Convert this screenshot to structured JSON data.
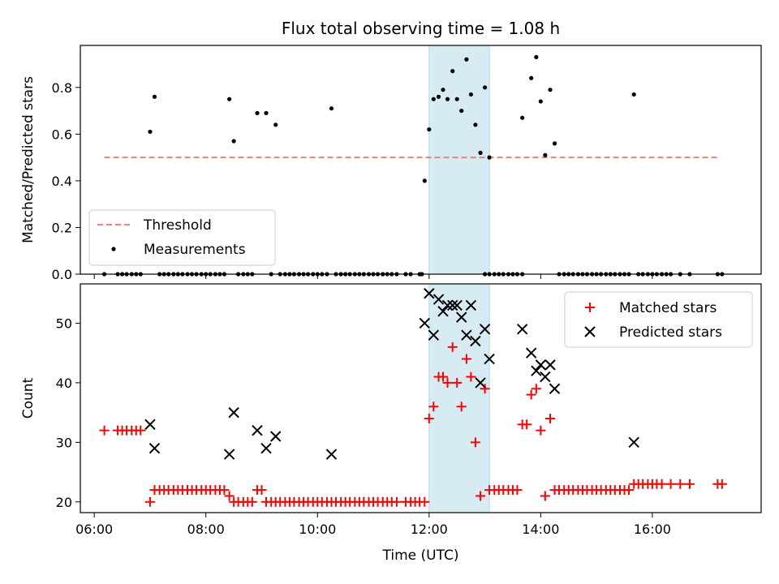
{
  "title": "Flux total observing time = 1.08 h",
  "colors": {
    "threshold": "#f08080",
    "measurements": "#000000",
    "matched": "#ff0000",
    "predicted": "#000000",
    "highlight": "#add8e6"
  },
  "x_axis": {
    "label": "Time (UTC)",
    "range_hours": [
      5.75,
      17.95
    ],
    "ticks": [
      {
        "hour": 6,
        "label": "06:00"
      },
      {
        "hour": 8,
        "label": "08:00"
      },
      {
        "hour": 10,
        "label": "10:00"
      },
      {
        "hour": 12,
        "label": "12:00"
      },
      {
        "hour": 14,
        "label": "14:00"
      },
      {
        "hour": 16,
        "label": "16:00"
      }
    ]
  },
  "highlight_window_hours": [
    12.0,
    13.08
  ],
  "chart_data": [
    {
      "type": "scatter",
      "panel": "top",
      "ylabel": "Matched/Predicted stars",
      "ylim": [
        0.0,
        0.98
      ],
      "yticks": [
        "0.0",
        "0.2",
        "0.4",
        "0.6",
        "0.8"
      ],
      "legend": {
        "placement": "lower-left",
        "threshold_label": "Threshold",
        "measurements_label": "Measurements"
      },
      "threshold": {
        "value": 0.5,
        "x_range": [
          6.18,
          17.2
        ]
      },
      "measurements": [
        [
          7.0,
          0.61
        ],
        [
          7.08,
          0.76
        ],
        [
          8.42,
          0.75
        ],
        [
          8.5,
          0.57
        ],
        [
          8.92,
          0.69
        ],
        [
          9.08,
          0.69
        ],
        [
          9.25,
          0.64
        ],
        [
          10.25,
          0.71
        ],
        [
          11.92,
          0.4
        ],
        [
          12.0,
          0.62
        ],
        [
          12.08,
          0.75
        ],
        [
          12.17,
          0.76
        ],
        [
          12.25,
          0.79
        ],
        [
          12.33,
          0.75
        ],
        [
          12.42,
          0.87
        ],
        [
          12.5,
          0.75
        ],
        [
          12.58,
          0.7
        ],
        [
          12.67,
          0.92
        ],
        [
          12.75,
          0.77
        ],
        [
          12.83,
          0.64
        ],
        [
          12.92,
          0.52
        ],
        [
          13.0,
          0.8
        ],
        [
          13.08,
          0.5
        ],
        [
          13.67,
          0.67
        ],
        [
          13.83,
          0.84
        ],
        [
          13.92,
          0.93
        ],
        [
          14.0,
          0.74
        ],
        [
          14.08,
          0.51
        ],
        [
          14.17,
          0.79
        ],
        [
          14.25,
          0.56
        ],
        [
          15.67,
          0.77
        ]
      ],
      "zero_measurements_x": [
        6.18,
        6.42,
        6.5,
        6.58,
        6.67,
        6.75,
        6.83,
        7.17,
        7.25,
        7.33,
        7.42,
        7.5,
        7.58,
        7.67,
        7.75,
        7.83,
        7.92,
        8.0,
        8.08,
        8.17,
        8.25,
        8.33,
        8.58,
        8.67,
        8.75,
        8.83,
        9.17,
        9.33,
        9.42,
        9.5,
        9.58,
        9.67,
        9.75,
        9.83,
        9.92,
        10.0,
        10.08,
        10.17,
        10.33,
        10.42,
        10.5,
        10.58,
        10.67,
        10.75,
        10.83,
        10.92,
        11.0,
        11.08,
        11.17,
        11.25,
        11.33,
        11.42,
        11.58,
        11.67,
        11.83,
        11.87,
        13.0,
        13.08,
        13.17,
        13.25,
        13.33,
        13.42,
        13.5,
        13.58,
        13.67,
        14.33,
        14.42,
        14.5,
        14.58,
        14.67,
        14.75,
        14.83,
        14.92,
        15.0,
        15.08,
        15.17,
        15.25,
        15.33,
        15.42,
        15.5,
        15.58,
        15.75,
        15.83,
        15.92,
        16.0,
        16.08,
        16.17,
        16.25,
        16.33,
        16.5,
        16.67,
        17.17,
        17.25
      ]
    },
    {
      "type": "scatter",
      "panel": "bottom",
      "ylabel": "Count",
      "ylim": [
        18.2,
        56.6
      ],
      "yticks": [
        "20",
        "30",
        "40",
        "50"
      ],
      "legend": {
        "placement": "upper-right",
        "matched_label": "Matched stars",
        "predicted_label": "Predicted stars"
      },
      "matched": [
        [
          6.18,
          32
        ],
        [
          6.42,
          32
        ],
        [
          6.5,
          32
        ],
        [
          6.58,
          32
        ],
        [
          6.67,
          32
        ],
        [
          6.75,
          32
        ],
        [
          6.83,
          32
        ],
        [
          7.0,
          20
        ],
        [
          7.08,
          22
        ],
        [
          7.17,
          22
        ],
        [
          7.25,
          22
        ],
        [
          7.33,
          22
        ],
        [
          7.42,
          22
        ],
        [
          7.5,
          22
        ],
        [
          7.58,
          22
        ],
        [
          7.67,
          22
        ],
        [
          7.75,
          22
        ],
        [
          7.83,
          22
        ],
        [
          7.92,
          22
        ],
        [
          8.0,
          22
        ],
        [
          8.08,
          22
        ],
        [
          8.17,
          22
        ],
        [
          8.25,
          22
        ],
        [
          8.33,
          22
        ],
        [
          8.42,
          21
        ],
        [
          8.5,
          20
        ],
        [
          8.58,
          20
        ],
        [
          8.67,
          20
        ],
        [
          8.75,
          20
        ],
        [
          8.83,
          20
        ],
        [
          8.92,
          22
        ],
        [
          9.0,
          22
        ],
        [
          9.08,
          20
        ],
        [
          9.17,
          20
        ],
        [
          9.25,
          20
        ],
        [
          9.33,
          20
        ],
        [
          9.42,
          20
        ],
        [
          9.5,
          20
        ],
        [
          9.58,
          20
        ],
        [
          9.67,
          20
        ],
        [
          9.75,
          20
        ],
        [
          9.83,
          20
        ],
        [
          9.92,
          20
        ],
        [
          10.0,
          20
        ],
        [
          10.08,
          20
        ],
        [
          10.17,
          20
        ],
        [
          10.25,
          20
        ],
        [
          10.33,
          20
        ],
        [
          10.42,
          20
        ],
        [
          10.5,
          20
        ],
        [
          10.58,
          20
        ],
        [
          10.67,
          20
        ],
        [
          10.75,
          20
        ],
        [
          10.83,
          20
        ],
        [
          10.92,
          20
        ],
        [
          11.0,
          20
        ],
        [
          11.08,
          20
        ],
        [
          11.17,
          20
        ],
        [
          11.25,
          20
        ],
        [
          11.33,
          20
        ],
        [
          11.42,
          20
        ],
        [
          11.58,
          20
        ],
        [
          11.67,
          20
        ],
        [
          11.75,
          20
        ],
        [
          11.83,
          20
        ],
        [
          11.92,
          20
        ],
        [
          12.0,
          34
        ],
        [
          12.08,
          36
        ],
        [
          12.17,
          41
        ],
        [
          12.25,
          41
        ],
        [
          12.33,
          40
        ],
        [
          12.42,
          46
        ],
        [
          12.5,
          40
        ],
        [
          12.58,
          36
        ],
        [
          12.67,
          44
        ],
        [
          12.75,
          41
        ],
        [
          12.83,
          30
        ],
        [
          12.92,
          21
        ],
        [
          13.0,
          39
        ],
        [
          13.08,
          22
        ],
        [
          13.17,
          22
        ],
        [
          13.25,
          22
        ],
        [
          13.33,
          22
        ],
        [
          13.42,
          22
        ],
        [
          13.5,
          22
        ],
        [
          13.58,
          22
        ],
        [
          13.67,
          33
        ],
        [
          13.75,
          33
        ],
        [
          13.83,
          38
        ],
        [
          13.92,
          39
        ],
        [
          14.0,
          32
        ],
        [
          14.08,
          21
        ],
        [
          14.17,
          34
        ],
        [
          14.25,
          22
        ],
        [
          14.33,
          22
        ],
        [
          14.42,
          22
        ],
        [
          14.5,
          22
        ],
        [
          14.58,
          22
        ],
        [
          14.67,
          22
        ],
        [
          14.75,
          22
        ],
        [
          14.83,
          22
        ],
        [
          14.92,
          22
        ],
        [
          15.0,
          22
        ],
        [
          15.08,
          22
        ],
        [
          15.17,
          22
        ],
        [
          15.25,
          22
        ],
        [
          15.33,
          22
        ],
        [
          15.42,
          22
        ],
        [
          15.5,
          22
        ],
        [
          15.58,
          22
        ],
        [
          15.67,
          23
        ],
        [
          15.75,
          23
        ],
        [
          15.83,
          23
        ],
        [
          15.92,
          23
        ],
        [
          16.0,
          23
        ],
        [
          16.08,
          23
        ],
        [
          16.17,
          23
        ],
        [
          16.33,
          23
        ],
        [
          16.5,
          23
        ],
        [
          16.67,
          23
        ],
        [
          17.17,
          23
        ],
        [
          17.25,
          23
        ]
      ],
      "predicted": [
        [
          7.0,
          33
        ],
        [
          7.08,
          29
        ],
        [
          8.42,
          28
        ],
        [
          8.5,
          35
        ],
        [
          8.92,
          32
        ],
        [
          9.08,
          29
        ],
        [
          9.25,
          31
        ],
        [
          10.25,
          28
        ],
        [
          11.92,
          50
        ],
        [
          12.0,
          55
        ],
        [
          12.08,
          48
        ],
        [
          12.17,
          54
        ],
        [
          12.25,
          52
        ],
        [
          12.33,
          53
        ],
        [
          12.42,
          53
        ],
        [
          12.5,
          53
        ],
        [
          12.58,
          51
        ],
        [
          12.67,
          48
        ],
        [
          12.75,
          53
        ],
        [
          12.83,
          47
        ],
        [
          12.92,
          40
        ],
        [
          13.0,
          49
        ],
        [
          13.08,
          44
        ],
        [
          13.67,
          49
        ],
        [
          13.83,
          45
        ],
        [
          13.92,
          42
        ],
        [
          14.0,
          43
        ],
        [
          14.08,
          41
        ],
        [
          14.17,
          43
        ],
        [
          14.25,
          39
        ],
        [
          15.67,
          30
        ]
      ]
    }
  ]
}
